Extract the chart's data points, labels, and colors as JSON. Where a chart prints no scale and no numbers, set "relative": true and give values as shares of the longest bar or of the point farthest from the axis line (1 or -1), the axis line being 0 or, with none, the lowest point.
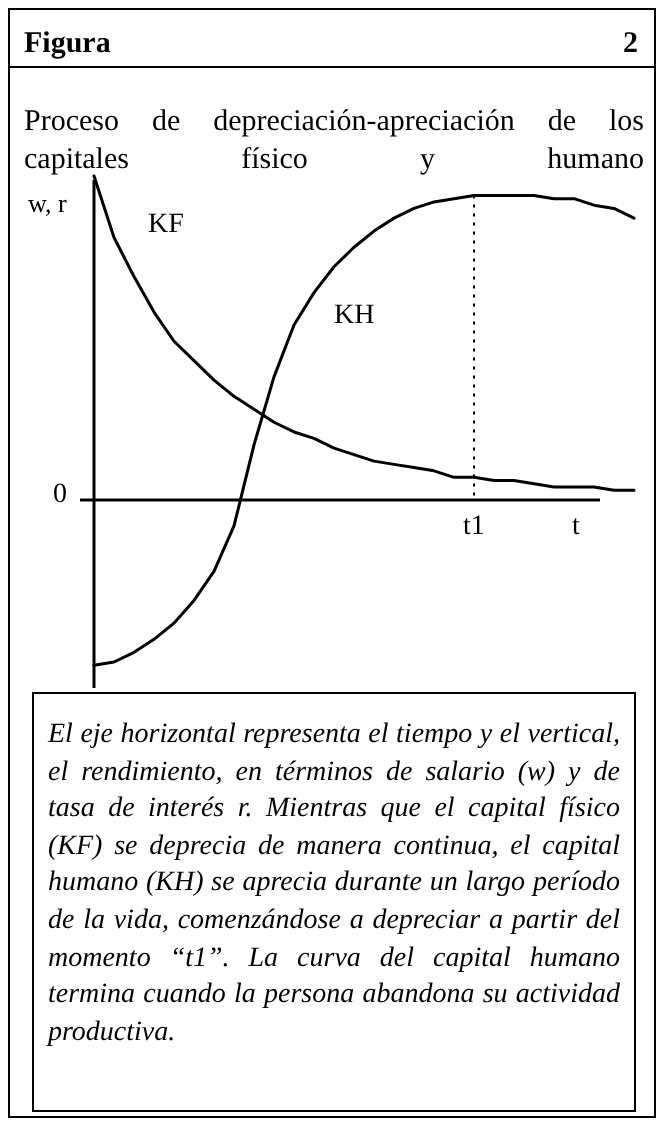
{
  "chart_data": {
    "type": "line",
    "relative": true,
    "title": "Figura",
    "subtitle": "Proceso de depreciación-apreciación de los capitales físico y humano",
    "ylabel": "w, r",
    "xlabel": "t",
    "categories": [
      null,
      null,
      null,
      null,
      null,
      null,
      null,
      null,
      null,
      null,
      null,
      null,
      null,
      null,
      null,
      null,
      null,
      null,
      null,
      null,
      null,
      null,
      null,
      null,
      null,
      null,
      null,
      null
    ],
    "series": [
      {
        "name": "KF",
        "color": "#000000",
        "values": [
          1.0,
          0.81,
          0.69,
          0.58,
          0.49,
          0.43,
          0.37,
          0.32,
          0.28,
          0.24,
          0.21,
          0.19,
          0.16,
          0.14,
          0.12,
          0.11,
          0.1,
          0.09,
          0.07,
          0.07,
          0.06,
          0.06,
          0.05,
          0.04,
          0.04,
          0.04,
          0.03,
          0.03
        ]
      },
      {
        "name": "KH",
        "color": "#000000",
        "values": [
          -0.51,
          -0.5,
          -0.47,
          -0.43,
          -0.38,
          -0.31,
          -0.22,
          -0.08,
          0.17,
          0.38,
          0.54,
          0.64,
          0.72,
          0.78,
          0.83,
          0.87,
          0.9,
          0.92,
          0.93,
          0.94,
          0.94,
          0.94,
          0.94,
          0.93,
          0.93,
          0.91,
          0.9,
          0.87
        ]
      }
    ],
    "annotations": [
      "2",
      "0",
      "t1",
      "El eje horizontal representa el tiempo y el vertical, el rendimiento, en términos de salario (w) y de tasa de interés r. Mientras que el capital físico (KF) se deprecia de manera continua, el capital humano (KH) se aprecia durante un largo período de la vida, comenzándose a depreciar a partir del momento “t1”. La curva del capital humano termina cuando la persona abandona su actividad productiva."
    ],
    "legend": false,
    "grid": false,
    "marker": "none",
    "line_style": "solid"
  }
}
